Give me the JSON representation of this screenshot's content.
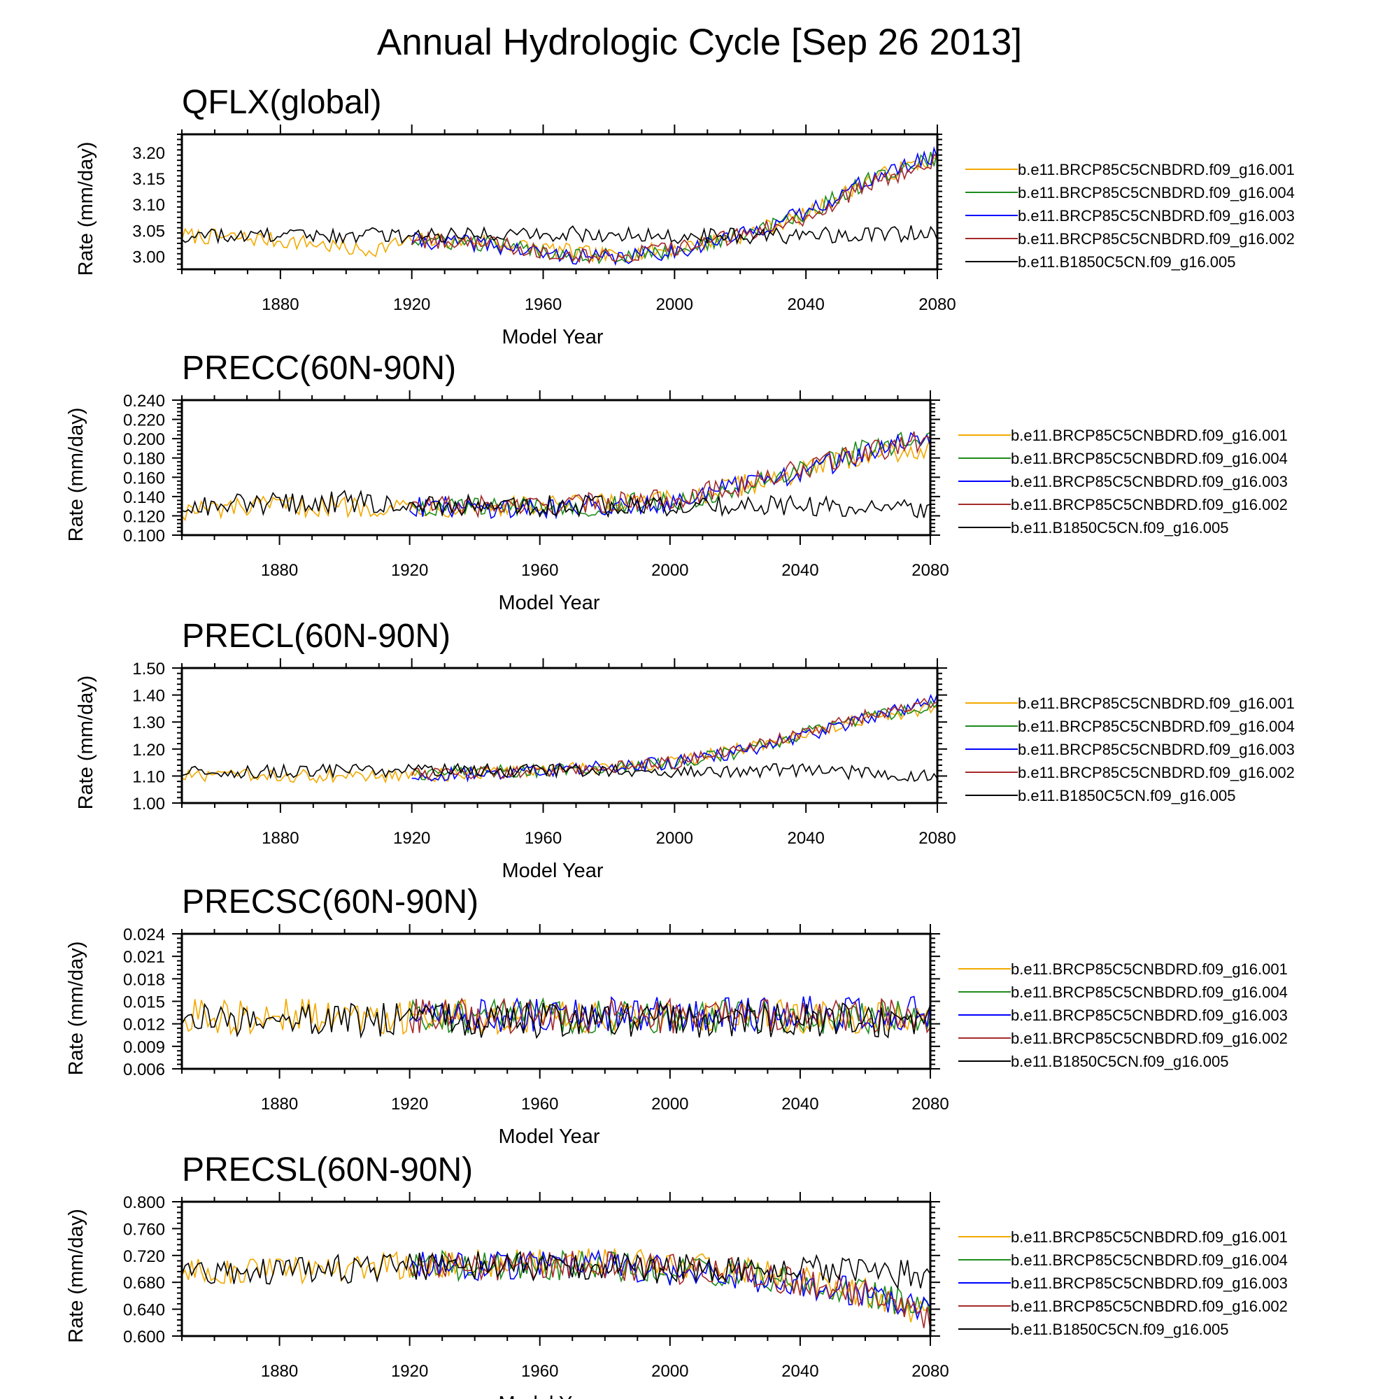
{
  "figure": {
    "title": "Annual Hydrologic Cycle [Sep 26 2013]"
  },
  "legend_entries": [
    "b.e11.BRCP85C5CNBDRD.f09_g16.001",
    "b.e11.BRCP85C5CNBDRD.f09_g16.004",
    "b.e11.BRCP85C5CNBDRD.f09_g16.003",
    "b.e11.BRCP85C5CNBDRD.f09_g16.002",
    "b.e11.B1850C5CN.f09_g16.005"
  ],
  "series_colors": [
    "#f2a900",
    "#1e8c1e",
    "#0000ff",
    "#a52a2a",
    "#000000"
  ],
  "chart_data": [
    {
      "type": "line",
      "title": "QFLX(global)",
      "xlabel": "Model Year",
      "ylabel": "Rate (mm/day)",
      "xlim": [
        1850,
        2080
      ],
      "ylim": [
        2.975,
        3.235
      ],
      "xticks": [
        "1880",
        "1920",
        "1960",
        "2000",
        "2040",
        "2080"
      ],
      "yticks": [
        "3.00",
        "3.05",
        "3.10",
        "3.15",
        "3.20"
      ],
      "legend_position": "right",
      "series": [
        {
          "name": "b.e11.BRCP85C5CNBDRD.f09_g16.001",
          "x": [
            1850,
            1870,
            1890,
            1905,
            1920,
            1940,
            1960,
            1980,
            2000,
            2020,
            2040,
            2060,
            2080
          ],
          "values": [
            3.04,
            3.035,
            3.025,
            3.01,
            3.03,
            3.03,
            3.015,
            3.0,
            3.015,
            3.04,
            3.08,
            3.15,
            3.19
          ]
        },
        {
          "name": "b.e11.BRCP85C5CNBDRD.f09_g16.004",
          "x": [
            1920,
            1940,
            1960,
            1980,
            2000,
            2020,
            2040,
            2060,
            2080
          ],
          "values": [
            3.03,
            3.025,
            3.01,
            3.0,
            3.01,
            3.04,
            3.08,
            3.15,
            3.19
          ]
        },
        {
          "name": "b.e11.BRCP85C5CNBDRD.f09_g16.003",
          "x": [
            1920,
            1940,
            1960,
            1980,
            2000,
            2020,
            2040,
            2060,
            2080
          ],
          "values": [
            3.03,
            3.025,
            3.005,
            2.995,
            3.01,
            3.04,
            3.085,
            3.15,
            3.195
          ]
        },
        {
          "name": "b.e11.BRCP85C5CNBDRD.f09_g16.002",
          "x": [
            1920,
            1940,
            1960,
            1980,
            2000,
            2020,
            2040,
            2060,
            2080
          ],
          "values": [
            3.03,
            3.03,
            3.01,
            3.0,
            3.015,
            3.04,
            3.075,
            3.14,
            3.185
          ]
        },
        {
          "name": "b.e11.B1850C5CN.f09_g16.005",
          "x": [
            1850,
            1900,
            1950,
            2000,
            2040,
            2080
          ],
          "values": [
            3.04,
            3.04,
            3.045,
            3.04,
            3.04,
            3.045
          ]
        }
      ]
    },
    {
      "type": "line",
      "title": "PRECC(60N-90N)",
      "xlabel": "Model Year",
      "ylabel": "Rate (mm/day)",
      "xlim": [
        1850,
        2080
      ],
      "ylim": [
        0.1,
        0.24
      ],
      "xticks": [
        "1880",
        "1920",
        "1960",
        "2000",
        "2040",
        "2080"
      ],
      "yticks": [
        "0.100",
        "0.120",
        "0.140",
        "0.160",
        "0.180",
        "0.200",
        "0.220",
        "0.240"
      ],
      "legend_position": "right",
      "series": [
        {
          "name": "b.e11.BRCP85C5CNBDRD.f09_g16.001",
          "x": [
            1850,
            1880,
            1920,
            1960,
            2000,
            2020,
            2040,
            2060,
            2080
          ],
          "values": [
            0.125,
            0.13,
            0.13,
            0.13,
            0.135,
            0.15,
            0.165,
            0.185,
            0.19
          ]
        },
        {
          "name": "b.e11.BRCP85C5CNBDRD.f09_g16.004",
          "x": [
            1920,
            1960,
            2000,
            2020,
            2040,
            2060,
            2080
          ],
          "values": [
            0.13,
            0.128,
            0.135,
            0.148,
            0.165,
            0.19,
            0.2
          ]
        },
        {
          "name": "b.e11.BRCP85C5CNBDRD.f09_g16.003",
          "x": [
            1920,
            1960,
            2000,
            2020,
            2040,
            2060,
            2080
          ],
          "values": [
            0.13,
            0.128,
            0.135,
            0.15,
            0.165,
            0.185,
            0.2
          ]
        },
        {
          "name": "b.e11.BRCP85C5CNBDRD.f09_g16.002",
          "x": [
            1920,
            1960,
            2000,
            2020,
            2040,
            2060,
            2080
          ],
          "values": [
            0.13,
            0.13,
            0.138,
            0.15,
            0.168,
            0.185,
            0.2
          ]
        },
        {
          "name": "b.e11.B1850C5CN.f09_g16.005",
          "x": [
            1850,
            1900,
            1950,
            2000,
            2040,
            2080
          ],
          "values": [
            0.13,
            0.135,
            0.13,
            0.13,
            0.13,
            0.128
          ]
        }
      ]
    },
    {
      "type": "line",
      "title": "PRECL(60N-90N)",
      "xlabel": "Model Year",
      "ylabel": "Rate (mm/day)",
      "xlim": [
        1850,
        2080
      ],
      "ylim": [
        1.0,
        1.5
      ],
      "xticks": [
        "1880",
        "1920",
        "1960",
        "2000",
        "2040",
        "2080"
      ],
      "yticks": [
        "1.00",
        "1.10",
        "1.20",
        "1.30",
        "1.40",
        "1.50"
      ],
      "legend_position": "right",
      "series": [
        {
          "name": "b.e11.BRCP85C5CNBDRD.f09_g16.001",
          "x": [
            1850,
            1880,
            1920,
            1960,
            2000,
            2020,
            2040,
            2060,
            2080
          ],
          "values": [
            1.1,
            1.1,
            1.1,
            1.12,
            1.15,
            1.2,
            1.26,
            1.32,
            1.35
          ]
        },
        {
          "name": "b.e11.BRCP85C5CNBDRD.f09_g16.004",
          "x": [
            1920,
            1960,
            2000,
            2020,
            2040,
            2060,
            2080
          ],
          "values": [
            1.11,
            1.12,
            1.15,
            1.19,
            1.26,
            1.32,
            1.36
          ]
        },
        {
          "name": "b.e11.BRCP85C5CNBDRD.f09_g16.003",
          "x": [
            1920,
            1960,
            2000,
            2020,
            2040,
            2060,
            2080
          ],
          "values": [
            1.1,
            1.12,
            1.15,
            1.19,
            1.25,
            1.32,
            1.38
          ]
        },
        {
          "name": "b.e11.BRCP85C5CNBDRD.f09_g16.002",
          "x": [
            1920,
            1960,
            2000,
            2020,
            2040,
            2060,
            2080
          ],
          "values": [
            1.11,
            1.12,
            1.15,
            1.2,
            1.26,
            1.33,
            1.38
          ]
        },
        {
          "name": "b.e11.B1850C5CN.f09_g16.005",
          "x": [
            1850,
            1900,
            1950,
            2000,
            2040,
            2080
          ],
          "values": [
            1.11,
            1.12,
            1.12,
            1.12,
            1.12,
            1.1
          ]
        }
      ]
    },
    {
      "type": "line",
      "title": "PRECSC(60N-90N)",
      "xlabel": "Model Year",
      "ylabel": "Rate (mm/day)",
      "xlim": [
        1850,
        2080
      ],
      "ylim": [
        0.006,
        0.024
      ],
      "xticks": [
        "1880",
        "1920",
        "1960",
        "2000",
        "2040",
        "2080"
      ],
      "yticks": [
        "0.006",
        "0.009",
        "0.012",
        "0.015",
        "0.018",
        "0.021",
        "0.024"
      ],
      "legend_position": "right",
      "series": [
        {
          "name": "b.e11.BRCP85C5CNBDRD.f09_g16.001",
          "x": [
            1850,
            2080
          ],
          "values": [
            0.013,
            0.013
          ]
        },
        {
          "name": "b.e11.BRCP85C5CNBDRD.f09_g16.004",
          "x": [
            1920,
            2080
          ],
          "values": [
            0.013,
            0.013
          ]
        },
        {
          "name": "b.e11.BRCP85C5CNBDRD.f09_g16.003",
          "x": [
            1920,
            2080
          ],
          "values": [
            0.013,
            0.0135
          ]
        },
        {
          "name": "b.e11.BRCP85C5CNBDRD.f09_g16.002",
          "x": [
            1920,
            2080
          ],
          "values": [
            0.013,
            0.013
          ]
        },
        {
          "name": "b.e11.B1850C5CN.f09_g16.005",
          "x": [
            1850,
            2080
          ],
          "values": [
            0.0125,
            0.0125
          ]
        }
      ]
    },
    {
      "type": "line",
      "title": "PRECSL(60N-90N)",
      "xlabel": "Model Year",
      "ylabel": "Rate (mm/day)",
      "xlim": [
        1850,
        2080
      ],
      "ylim": [
        0.6,
        0.8
      ],
      "xticks": [
        "1880",
        "1920",
        "1960",
        "2000",
        "2040",
        "2080"
      ],
      "yticks": [
        "0.600",
        "0.640",
        "0.680",
        "0.720",
        "0.760",
        "0.800"
      ],
      "legend_position": "right",
      "series": [
        {
          "name": "b.e11.BRCP85C5CNBDRD.f09_g16.001",
          "x": [
            1850,
            1920,
            1980,
            2020,
            2060,
            2080
          ],
          "values": [
            0.695,
            0.705,
            0.71,
            0.7,
            0.665,
            0.63
          ]
        },
        {
          "name": "b.e11.BRCP85C5CNBDRD.f09_g16.004",
          "x": [
            1920,
            1980,
            2020,
            2060,
            2080
          ],
          "values": [
            0.705,
            0.705,
            0.695,
            0.665,
            0.635
          ]
        },
        {
          "name": "b.e11.BRCP85C5CNBDRD.f09_g16.003",
          "x": [
            1920,
            1980,
            2020,
            2060,
            2080
          ],
          "values": [
            0.705,
            0.705,
            0.69,
            0.665,
            0.635
          ]
        },
        {
          "name": "b.e11.BRCP85C5CNBDRD.f09_g16.002",
          "x": [
            1920,
            1980,
            2020,
            2060,
            2080
          ],
          "values": [
            0.705,
            0.705,
            0.695,
            0.665,
            0.63
          ]
        },
        {
          "name": "b.e11.B1850C5CN.f09_g16.005",
          "x": [
            1850,
            1900,
            1950,
            2000,
            2040,
            2080
          ],
          "values": [
            0.695,
            0.7,
            0.705,
            0.7,
            0.7,
            0.69
          ]
        }
      ]
    }
  ]
}
